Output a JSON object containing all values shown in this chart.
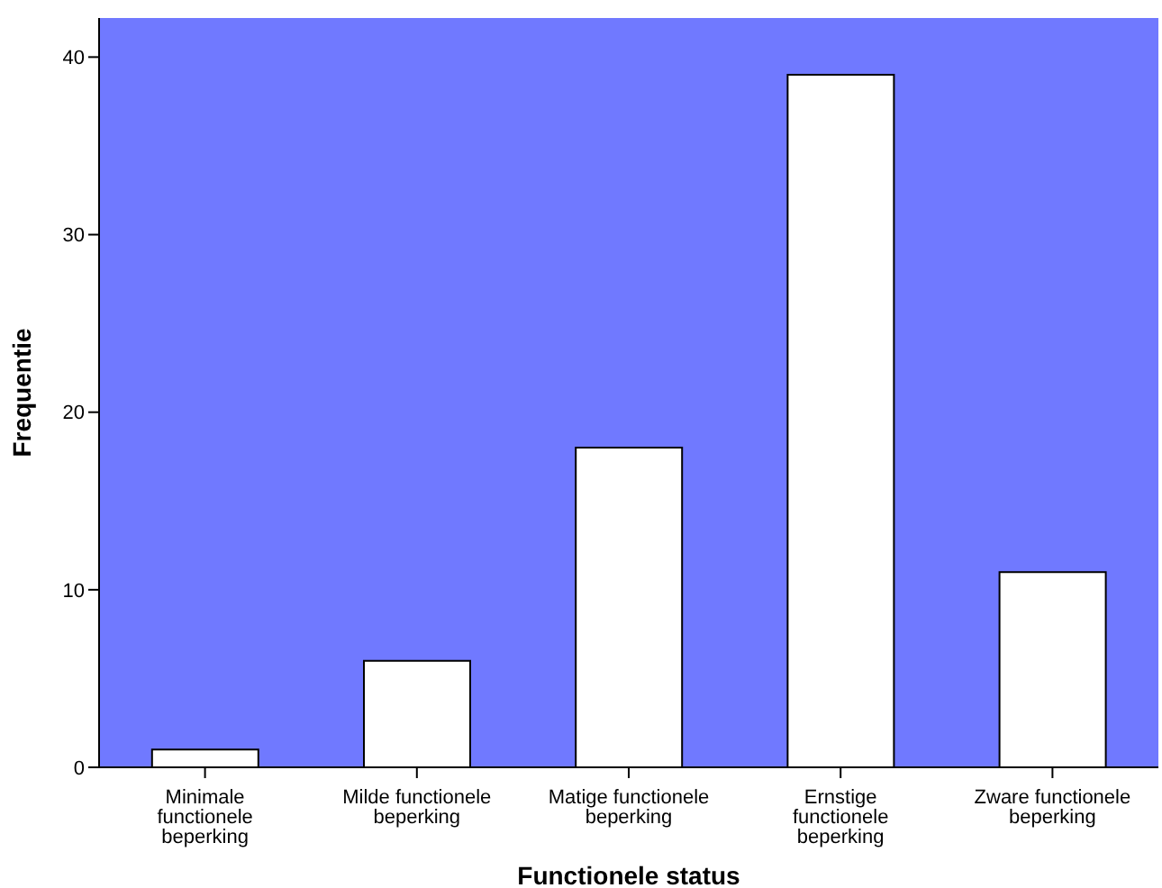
{
  "chart_data": {
    "type": "bar",
    "xlabel": "Functionele status",
    "ylabel": "Frequentie",
    "categories": [
      "Minimale functionele beperking",
      "Milde functionele beperking",
      "Matige functionele beperking",
      "Ernstige functionele beperking",
      "Zware functionele beperking"
    ],
    "values": [
      1,
      6,
      18,
      39,
      11
    ],
    "color": "#ffffff",
    "ylim": [
      0,
      42.2
    ],
    "yticks": [
      0,
      10,
      20,
      30,
      40
    ],
    "grid": false,
    "legend": false
  }
}
